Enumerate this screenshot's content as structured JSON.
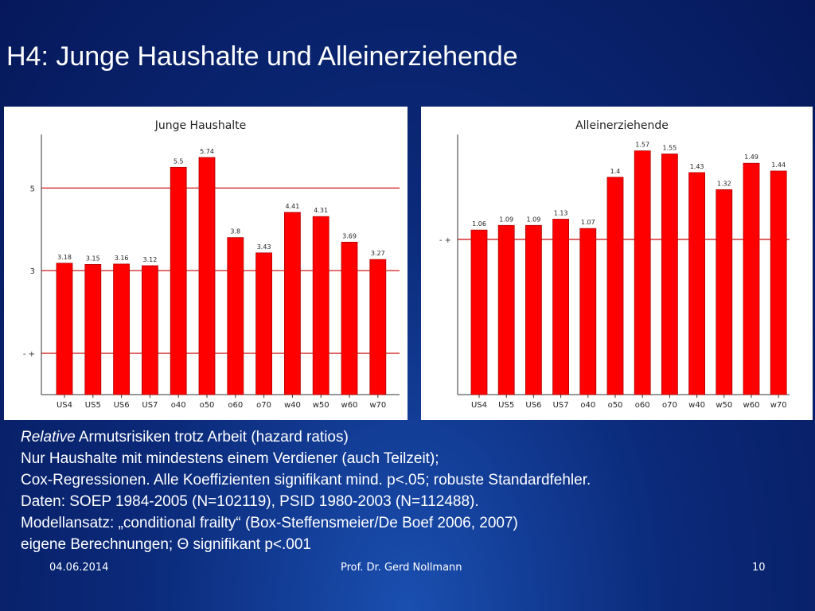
{
  "slide": {
    "title": "H4: Junge Haushalte und Alleinerziehende"
  },
  "chart_data": [
    {
      "type": "bar",
      "title": "Junge Haushalte",
      "categories": [
        "US4",
        "US5",
        "US6",
        "US7",
        "o40",
        "o50",
        "o60",
        "o70",
        "w40",
        "w50",
        "w60",
        "w70"
      ],
      "values": [
        3.18,
        3.15,
        3.16,
        3.12,
        5.5,
        5.74,
        3.8,
        3.43,
        4.41,
        4.31,
        3.69,
        3.27
      ],
      "value_labels": [
        "3.18",
        "3.15",
        "3.16",
        "3.12",
        "5.5",
        "5.74",
        "3.8",
        "3.43",
        "4.41",
        "4.31",
        "3.69",
        "3.27"
      ],
      "y_ticks": [
        {
          "value": 1,
          "label": "- +"
        },
        {
          "value": 3,
          "label": "3"
        },
        {
          "value": 5,
          "label": "5"
        }
      ],
      "ylim": [
        0,
        6.2
      ],
      "bar_color": "#ff0000",
      "gridline_color": "#cc0000",
      "grid": "reference lines at tick values"
    },
    {
      "type": "bar",
      "title": "Alleinerziehende",
      "categories": [
        "US4",
        "US5",
        "US6",
        "US7",
        "o40",
        "o50",
        "o60",
        "o70",
        "w40",
        "w50",
        "w60",
        "w70"
      ],
      "values": [
        1.06,
        1.09,
        1.09,
        1.13,
        1.07,
        1.4,
        1.57,
        1.55,
        1.43,
        1.32,
        1.49,
        1.44
      ],
      "value_labels": [
        "1.06",
        "1.09",
        "1.09",
        "1.13",
        "1.07",
        "1.4",
        "1.57",
        "1.55",
        "1.43",
        "1.32",
        "1.49",
        "1.44"
      ],
      "y_ticks": [
        {
          "value": 1,
          "label": "- +"
        }
      ],
      "ylim": [
        0,
        1.65
      ],
      "bar_color": "#ff0000",
      "gridline_color": "#cc0000",
      "grid": "reference line at tick value"
    }
  ],
  "caption": {
    "line1_italic": "Relative",
    "line1_rest": " Armutsrisiken trotz Arbeit (hazard ratios)",
    "line2": "Nur Haushalte mit mindestens einem Verdiener (auch Teilzeit);",
    "line3": "Cox-Regressionen. Alle Koeffizienten signifikant mind. p<.05; robuste Standardfehler.",
    "line4": "Daten: SOEP 1984-2005 (N=102119), PSID 1980-2003 (N=112488).",
    "line5": "Modellansatz: „conditional frailty“ (Box-Steffensmeier/De Boef 2006, 2007)",
    "line6": "eigene Berechnungen; Θ signifikant p<.001"
  },
  "footer": {
    "date": "04.06.2014",
    "author": "Prof. Dr. Gerd Nollmann",
    "page": "10"
  }
}
